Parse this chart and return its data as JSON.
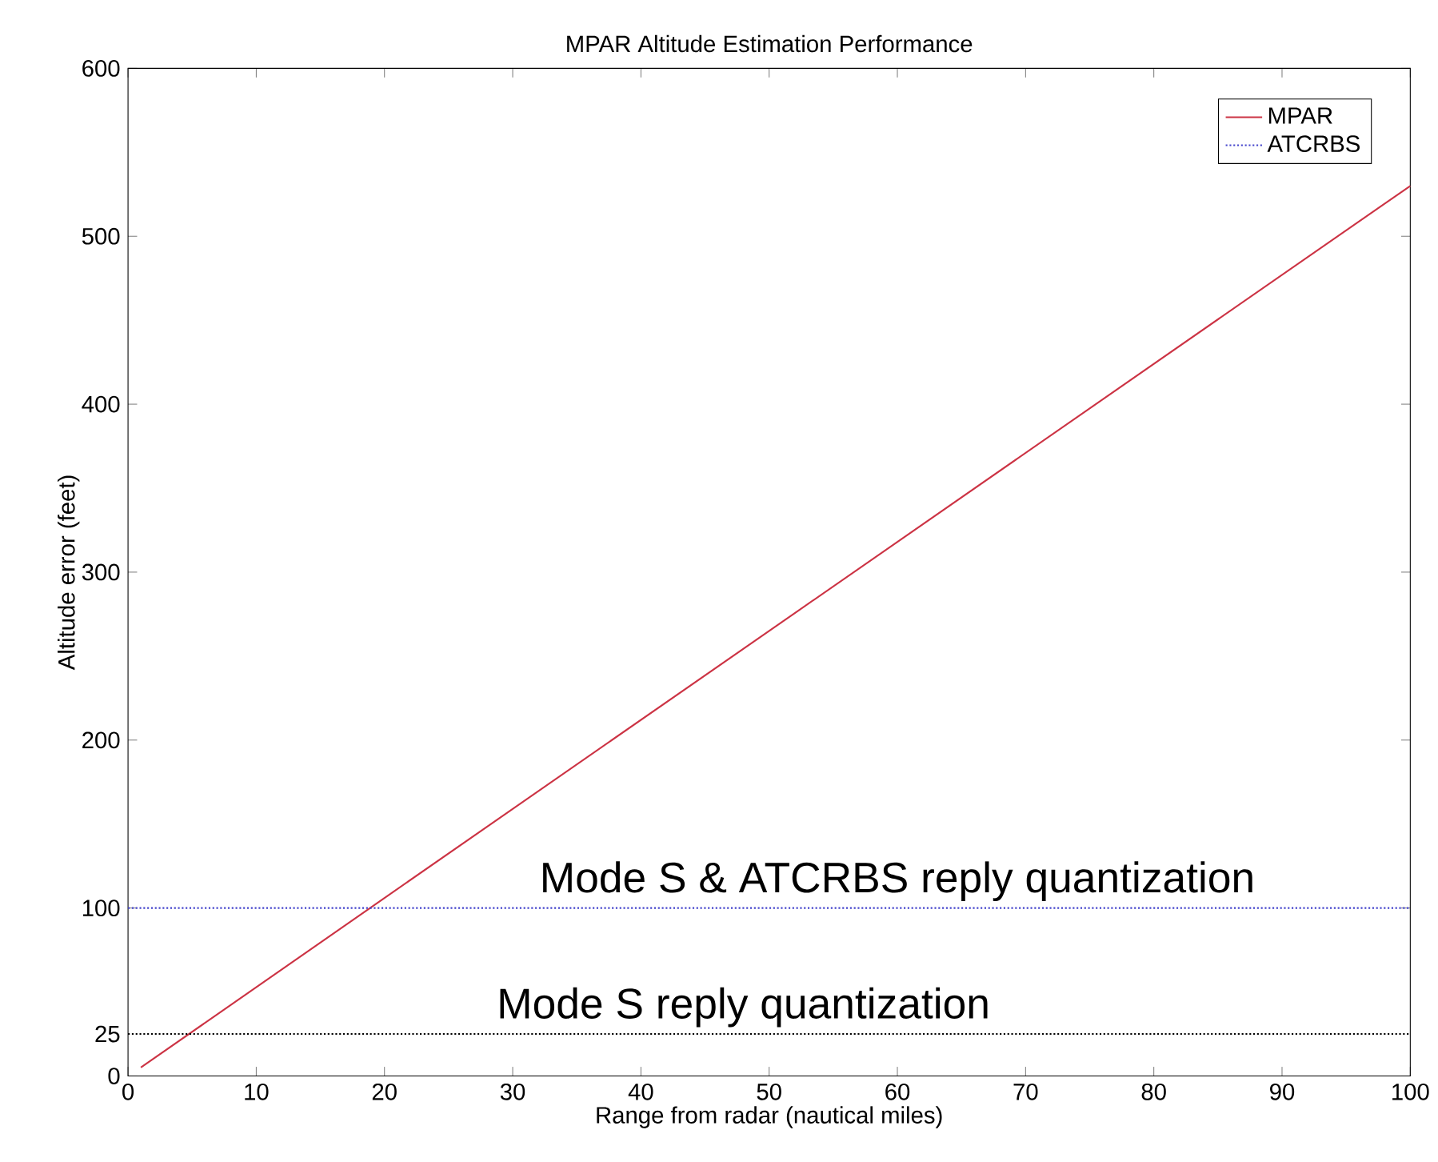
{
  "chart_data": {
    "type": "line",
    "title": "MPAR Altitude Estimation Performance",
    "xlabel": "Range from radar (nautical miles)",
    "ylabel": "Altitude error (feet)",
    "series": [
      {
        "name": "MPAR",
        "color": "#cc3344",
        "x": [
          1,
          20,
          50,
          100
        ],
        "values": [
          5,
          106,
          265,
          530
        ],
        "line_style": "solid"
      },
      {
        "name": "ATCRBS",
        "color": "#4444cc",
        "x": [
          0,
          100
        ],
        "values": [
          100,
          100
        ],
        "line_style": "dotted"
      }
    ],
    "xlim": [
      0,
      100
    ],
    "ylim": [
      0,
      600
    ],
    "xticks": [
      0,
      10,
      20,
      30,
      40,
      50,
      60,
      70,
      80,
      90,
      100
    ],
    "yticks": [
      0,
      100,
      200,
      300,
      400,
      500,
      600
    ],
    "ref_lines": [
      {
        "axis": "y",
        "value": 25,
        "label": "25",
        "color": "#000000",
        "line_style": "dotted"
      }
    ],
    "annotations": [
      {
        "text": "Mode S & ATCRBS reply quantization",
        "x": 60,
        "y": 100
      },
      {
        "text": "Mode S  reply quantization",
        "x": 48,
        "y": 25
      }
    ],
    "legend": "top right",
    "grid": false,
    "marker": "none"
  }
}
